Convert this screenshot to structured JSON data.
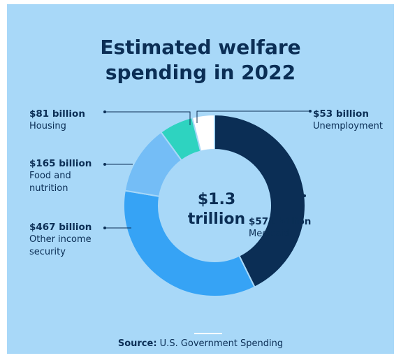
{
  "chart_data": {
    "type": "pie",
    "title": "Estimated welfare spending in 2022",
    "title_lines": [
      "Estimated welfare",
      "spending in 2022"
    ],
    "center_lines": [
      "$1.3",
      "trillion"
    ],
    "slices": [
      {
        "amount_label": "$571 billion",
        "category": "Medicaid",
        "value": 571,
        "color": "#0b2e55"
      },
      {
        "amount_label": "$467 billion",
        "category": "Other income\nsecurity",
        "value": 467,
        "color": "#36a3f5"
      },
      {
        "amount_label": "$165 billion",
        "category": "Food and\nnutrition",
        "value": 165,
        "color": "#74bdf6"
      },
      {
        "amount_label": "$81 billion",
        "category": "Housing",
        "value": 81,
        "color": "#2ed3c0"
      },
      {
        "amount_label": "$53 billion",
        "category": "Unemployment",
        "value": 53,
        "color": "#ffffff"
      }
    ],
    "source_label": "Source:",
    "source_text": "U.S. Government Spending"
  },
  "colors": {
    "background": "#a8d8f8",
    "text": "#0b2e55",
    "separator": "#a8d8f8"
  }
}
